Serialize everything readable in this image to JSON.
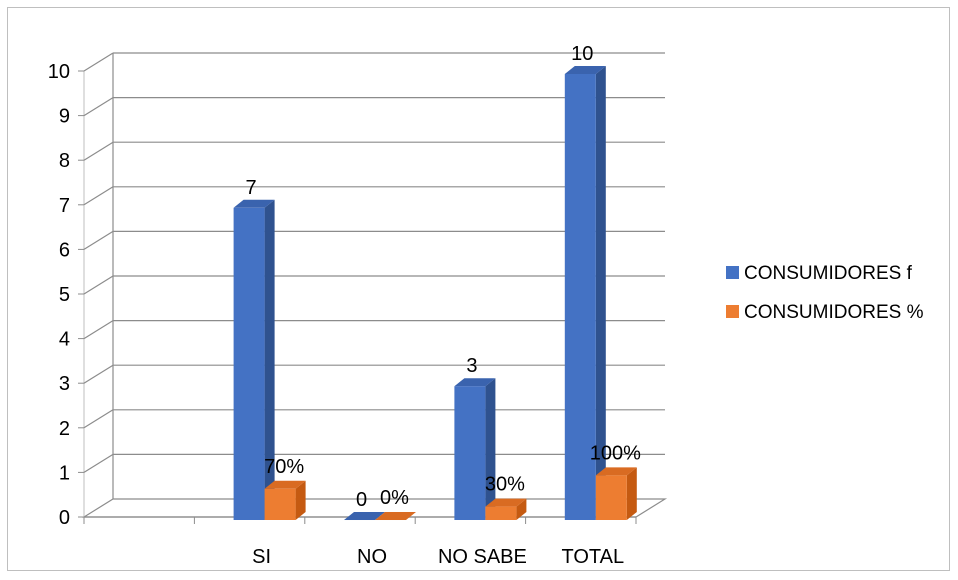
{
  "chart_data": {
    "type": "bar",
    "categories": [
      "",
      "SI",
      "NO",
      "NO SABE",
      "TOTAL"
    ],
    "series": [
      {
        "name": "CONSUMIDORES f",
        "color": "#4472C4",
        "side": "#2F528F",
        "top": "#3A63AE",
        "values": [
          null,
          7,
          0,
          3,
          10
        ],
        "labels": [
          "",
          "7",
          "0",
          "3",
          "10"
        ]
      },
      {
        "name": "CONSUMIDORES %",
        "color": "#ED7D31",
        "side": "#C55A11",
        "top": "#D96B22",
        "values": [
          null,
          0.7,
          0,
          0.3,
          1
        ],
        "labels": [
          "",
          "70%",
          "0%",
          "30%",
          "100%"
        ]
      }
    ],
    "ylim": [
      0,
      10
    ],
    "yticks": [
      "0",
      "1",
      "2",
      "3",
      "4",
      "5",
      "6",
      "7",
      "8",
      "9",
      "10"
    ],
    "grid": true,
    "legend_position": "right",
    "title": "",
    "xlabel": "",
    "ylabel": ""
  }
}
